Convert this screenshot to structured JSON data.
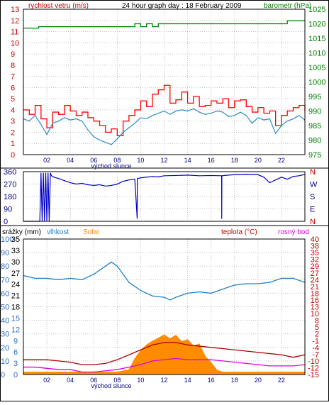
{
  "chart_data": [
    {
      "type": "line",
      "title": "24 hour graph day : 18 February 2009",
      "left_axis_label": "rychlost vetru (m/s)",
      "right_axis_label": "barometr (hPa)",
      "ylim_left": [
        0,
        13
      ],
      "yticks_left": [
        "0",
        "1",
        "2",
        "3",
        "4",
        "5",
        "6",
        "7",
        "8",
        "9",
        "10",
        "11",
        "12",
        "13"
      ],
      "ylim_right": [
        975,
        1025
      ],
      "yticks_right": [
        "975",
        "980",
        "985",
        "990",
        "995",
        "1000",
        "1005",
        "1010",
        "1015",
        "1020",
        "1025"
      ],
      "xlim": [
        0,
        24
      ],
      "xticks": [
        "02",
        "04",
        "06",
        "08",
        "10",
        "12",
        "14",
        "16",
        "18",
        "20",
        "22"
      ],
      "x_marker": "východ slunce",
      "colors": {
        "gust": "#ff0000",
        "wind": "#2b8cc4",
        "pressure": "#008000",
        "grid": "#c0c0c0"
      },
      "series": [
        {
          "key": "gust",
          "x": [
            0,
            0.5,
            1,
            1.5,
            2,
            2.5,
            3,
            3.5,
            4,
            4.5,
            5,
            5.5,
            6,
            6.5,
            7,
            7.5,
            8,
            8.5,
            9,
            9.5,
            10,
            10.5,
            11,
            11.5,
            12,
            12.5,
            13,
            13.5,
            14,
            14.5,
            15,
            15.5,
            16,
            16.5,
            17,
            17.5,
            18,
            18.5,
            19,
            19.5,
            20,
            20.5,
            21,
            21.5,
            22,
            22.5,
            23,
            23.5,
            24
          ],
          "values": [
            4,
            3.6,
            4.4,
            3.2,
            2.4,
            3.8,
            3.6,
            4.4,
            3.9,
            3.5,
            3.8,
            3.3,
            3,
            2.6,
            2,
            2.3,
            1.7,
            3,
            3.5,
            4,
            4.8,
            4.3,
            5.4,
            5.8,
            6.2,
            4.6,
            4.9,
            5.6,
            4.6,
            5.2,
            4.3,
            4.4,
            4.8,
            4.6,
            5,
            4.2,
            4.8,
            4.9,
            4.3,
            3.8,
            4.2,
            3.7,
            3.9,
            2.6,
            3.5,
            3.9,
            4.2,
            4.4,
            3.9
          ]
        },
        {
          "key": "wind",
          "x": [
            0,
            0.5,
            1,
            1.5,
            2,
            2.5,
            3,
            3.5,
            4,
            4.5,
            5,
            5.5,
            6,
            6.5,
            7,
            7.5,
            8,
            8.5,
            9,
            9.5,
            10,
            10.5,
            11,
            11.5,
            12,
            12.5,
            13,
            13.5,
            14,
            14.5,
            15,
            15.5,
            16,
            16.5,
            17,
            17.5,
            18,
            18.5,
            19,
            19.5,
            20,
            20.5,
            21,
            21.5,
            22,
            22.5,
            23,
            23.5,
            24
          ],
          "values": [
            3.2,
            3,
            3.5,
            2.7,
            1.8,
            2.8,
            3,
            3.3,
            3.1,
            3.2,
            3,
            2.2,
            1.6,
            1.3,
            1.1,
            0.9,
            1.4,
            2,
            2.4,
            2.8,
            3.3,
            3.2,
            3.5,
            3.7,
            3.9,
            3.6,
            3.9,
            4,
            3.9,
            4.1,
            3.8,
            3.6,
            3.7,
            3.9,
            3.8,
            3.4,
            3.5,
            3.8,
            3.5,
            2.8,
            3.3,
            3.1,
            3.2,
            1.9,
            2.6,
            3,
            3.2,
            3.5,
            3.1
          ]
        },
        {
          "key": "pressure",
          "axis": "right",
          "x": [
            0,
            1,
            1.3,
            2,
            6,
            9,
            9.5,
            10,
            10.5,
            11,
            11.5,
            12,
            13,
            14,
            17,
            22,
            22.5,
            24
          ],
          "values": [
            1018.5,
            1018.5,
            1019,
            1019,
            1019,
            1019,
            1020,
            1019,
            1020,
            1019,
            1020,
            1020,
            1020,
            1020,
            1020,
            1020,
            1021,
            1021
          ]
        }
      ]
    },
    {
      "type": "line",
      "ylabels_left": [
        "360",
        "270",
        "180",
        "90",
        "0"
      ],
      "ylabels_right": [
        "N",
        "W",
        "S",
        "E",
        "N"
      ],
      "ylim": [
        0,
        360
      ],
      "xlim": [
        0,
        24
      ],
      "colors": {
        "direction": "#0000cc",
        "grid": "#c0c0c0"
      },
      "series": [
        {
          "key": "direction",
          "x": [
            0,
            1.4,
            1.5,
            1.6,
            1.7,
            1.8,
            1.9,
            2.0,
            2.1,
            2.2,
            2.3,
            2.4,
            2.6,
            3,
            3.5,
            4,
            4.5,
            5,
            5.5,
            6,
            6.5,
            7,
            7.5,
            8,
            8.5,
            9,
            9.5,
            9.7,
            9.71,
            9.72,
            10,
            10.5,
            11,
            11.5,
            12,
            13,
            14,
            15,
            16,
            16.9,
            16.91,
            16.92,
            17.5,
            18,
            19,
            20,
            20.5,
            21,
            21.5,
            22,
            22.5,
            23,
            23.5,
            24
          ],
          "values": [
            0,
            0,
            350,
            0,
            350,
            0,
            350,
            0,
            350,
            0,
            350,
            330,
            320,
            310,
            295,
            280,
            270,
            275,
            265,
            260,
            265,
            255,
            260,
            270,
            290,
            300,
            305,
            20,
            305,
            310,
            315,
            320,
            325,
            322,
            330,
            332,
            335,
            330,
            332,
            330,
            20,
            330,
            335,
            338,
            340,
            338,
            320,
            280,
            300,
            320,
            305,
            325,
            330,
            340
          ]
        }
      ]
    },
    {
      "type": "line",
      "legend": {
        "srazky": "srážky (mm)",
        "vlhkost": "vlhkost",
        "solar": "Solar",
        "teplota": "teplota (°C)",
        "rosny_bod": "rosný bod"
      },
      "axes_labels": {
        "solar": [
          "0",
          "150",
          "300",
          "450",
          "600",
          "750",
          "900",
          "1050"
        ],
        "humidity": [
          "0",
          "10",
          "20",
          "30",
          "40",
          "50",
          "60",
          "70",
          "80",
          "90",
          "100"
        ],
        "precip": [
          "0",
          "3",
          "6",
          "9",
          "12",
          "15",
          "18",
          "21",
          "24",
          "27",
          "30",
          "33",
          "35"
        ],
        "temp_left": [
          "0",
          "2",
          "5",
          "7",
          "10",
          "12",
          "15",
          "17",
          "20",
          "22",
          "25",
          "27",
          "30",
          "32",
          "35"
        ],
        "temp_right": [
          "-15",
          "-12",
          "-10",
          "-7",
          "-4",
          "-1",
          "2",
          "5",
          "8",
          "10",
          "13",
          "16",
          "18",
          "21",
          "24",
          "27",
          "29",
          "32",
          "35",
          "38",
          "40"
        ]
      },
      "ylim_humidity": [
        0,
        100
      ],
      "ylim_temp": [
        -15,
        40
      ],
      "ylim_solar": [
        0,
        1050
      ],
      "xlim": [
        0,
        24
      ],
      "colors": {
        "humidity": "#2080c8",
        "solar": "#ff8c00",
        "temp": "#b00000",
        "dew": "#e000e0",
        "blue": "#3070c8",
        "orange": "#ff8c00",
        "red": "#c00000",
        "grid": "#c0c0c0"
      },
      "series": [
        {
          "key": "humidity",
          "x": [
            0,
            1,
            2,
            3,
            4,
            5,
            6,
            7,
            7.5,
            8,
            8.5,
            9,
            10,
            11,
            12,
            12.5,
            13,
            14,
            15,
            16,
            17,
            18,
            19,
            20,
            21,
            22,
            23,
            24
          ],
          "values": [
            73,
            71,
            71,
            70,
            71,
            70,
            74,
            80,
            83,
            80,
            74,
            68,
            62,
            58,
            57,
            55,
            57,
            60,
            61,
            60,
            63,
            66,
            67,
            67,
            68,
            71,
            71,
            68
          ]
        },
        {
          "key": "temperature",
          "x": [
            0,
            1,
            2,
            3,
            4,
            5,
            6,
            7,
            8,
            9,
            10,
            11,
            12,
            13,
            14,
            15,
            16,
            17,
            18,
            19,
            20,
            21,
            22,
            23,
            24
          ],
          "values": [
            -9,
            -9,
            -9,
            -9.5,
            -10,
            -11,
            -11,
            -10.5,
            -9,
            -7,
            -5,
            -3,
            -2,
            -2,
            -3,
            -3.5,
            -4,
            -4.5,
            -5,
            -5.5,
            -6,
            -6.5,
            -7,
            -8,
            -7
          ]
        },
        {
          "key": "dew_point",
          "x": [
            0,
            1,
            2,
            3,
            4,
            5,
            6,
            7,
            8,
            9,
            10,
            11,
            12,
            13,
            14,
            15,
            16,
            17,
            18,
            19,
            20,
            21,
            22,
            23,
            24
          ],
          "values": [
            -12,
            -12,
            -12.5,
            -13,
            -13,
            -14,
            -14,
            -13.5,
            -13,
            -12,
            -11,
            -9.5,
            -9,
            -8.5,
            -9,
            -9,
            -9,
            -9.5,
            -10,
            -10.5,
            -11,
            -11.5,
            -11.5,
            -11.5,
            -11
          ]
        },
        {
          "key": "solar",
          "x": [
            0,
            1,
            2,
            3,
            4,
            5,
            6,
            7,
            8,
            9,
            9.5,
            10,
            10.5,
            11,
            11.5,
            12,
            12.5,
            13,
            13.5,
            14,
            14.5,
            15,
            15.5,
            16,
            16.5,
            17,
            18,
            19,
            20,
            21,
            22,
            23,
            24
          ],
          "values": [
            50,
            50,
            50,
            50,
            50,
            50,
            50,
            50,
            50,
            100,
            330,
            500,
            620,
            700,
            760,
            830,
            750,
            820,
            690,
            730,
            600,
            640,
            380,
            250,
            90,
            50,
            50,
            50,
            50,
            50,
            50,
            50,
            50
          ]
        }
      ],
      "x_marker": "východ slunce",
      "xticks": [
        "02",
        "04",
        "06",
        "08",
        "10",
        "12",
        "14",
        "16",
        "18",
        "20",
        "22"
      ]
    }
  ]
}
